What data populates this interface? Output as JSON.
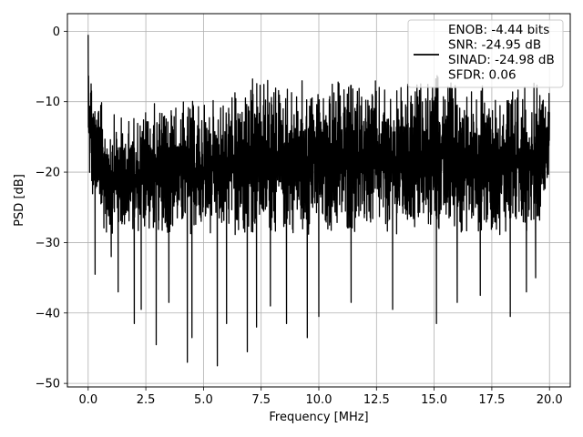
{
  "chart_data": {
    "type": "line",
    "title": "",
    "xlabel": "Frequency [MHz]",
    "ylabel": "PSD [dB]",
    "xlim": [
      -0.9,
      20.9
    ],
    "ylim": [
      -50.5,
      2.5
    ],
    "xticks": [
      0.0,
      2.5,
      5.0,
      7.5,
      10.0,
      12.5,
      15.0,
      17.5,
      20.0
    ],
    "xtick_labels": [
      "0.0",
      "2.5",
      "5.0",
      "7.5",
      "10.0",
      "12.5",
      "15.0",
      "17.5",
      "20.0"
    ],
    "yticks": [
      0,
      -10,
      -20,
      -30,
      -40,
      -50
    ],
    "ytick_labels": [
      "0",
      "−10",
      "−20",
      "−30",
      "−40",
      "−50"
    ],
    "grid": true,
    "legend_position": "top-right",
    "series": [
      {
        "name": "ENOB: -4.44 bits\nSNR: -24.95 dB\nSINAD: -24.98 dB\nSFDR: 0.06",
        "color": "#000000",
        "x_range": [
          0.0,
          20.0
        ],
        "envelope": {
          "x": [
            0.0,
            0.05,
            0.3,
            0.8,
            1.6,
            2.5,
            4.0,
            5.0,
            6.0,
            7.0,
            7.5,
            8.5,
            10.0,
            12.0,
            13.5,
            15.0,
            16.5,
            18.0,
            19.5,
            20.0
          ],
          "upper": [
            -0.5,
            -1.0,
            -8.0,
            -11.0,
            -12.0,
            -10.0,
            -9.5,
            -9.5,
            -8.5,
            -7.0,
            -5.5,
            -6.5,
            -7.0,
            -6.5,
            -7.5,
            -6.0,
            -6.5,
            -7.0,
            -7.0,
            -7.5
          ],
          "typical_low": [
            -21.0,
            -23.0,
            -27.0,
            -29.0,
            -29.0,
            -29.0,
            -29.0,
            -29.0,
            -29.0,
            -29.0,
            -29.0,
            -29.0,
            -29.0,
            -29.0,
            -29.0,
            -29.0,
            -29.0,
            -29.0,
            -28.0,
            -21.0
          ]
        },
        "deep_nulls": [
          {
            "x": 0.3,
            "y": -34.5
          },
          {
            "x": 1.0,
            "y": -32.0
          },
          {
            "x": 1.3,
            "y": -37.0
          },
          {
            "x": 2.0,
            "y": -41.5
          },
          {
            "x": 2.3,
            "y": -39.5
          },
          {
            "x": 2.95,
            "y": -44.5
          },
          {
            "x": 3.5,
            "y": -38.5
          },
          {
            "x": 4.3,
            "y": -47.0
          },
          {
            "x": 4.5,
            "y": -43.5
          },
          {
            "x": 5.6,
            "y": -47.5
          },
          {
            "x": 6.0,
            "y": -41.5
          },
          {
            "x": 6.9,
            "y": -45.5
          },
          {
            "x": 7.3,
            "y": -42.0
          },
          {
            "x": 7.9,
            "y": -39.0
          },
          {
            "x": 8.6,
            "y": -41.5
          },
          {
            "x": 9.5,
            "y": -43.5
          },
          {
            "x": 10.0,
            "y": -40.5
          },
          {
            "x": 11.4,
            "y": -38.5
          },
          {
            "x": 13.2,
            "y": -39.5
          },
          {
            "x": 15.1,
            "y": -41.5
          },
          {
            "x": 16.0,
            "y": -38.5
          },
          {
            "x": 17.0,
            "y": -37.5
          },
          {
            "x": 18.3,
            "y": -40.5
          },
          {
            "x": 19.0,
            "y": -37.0
          },
          {
            "x": 19.4,
            "y": -35.0
          }
        ]
      }
    ]
  }
}
